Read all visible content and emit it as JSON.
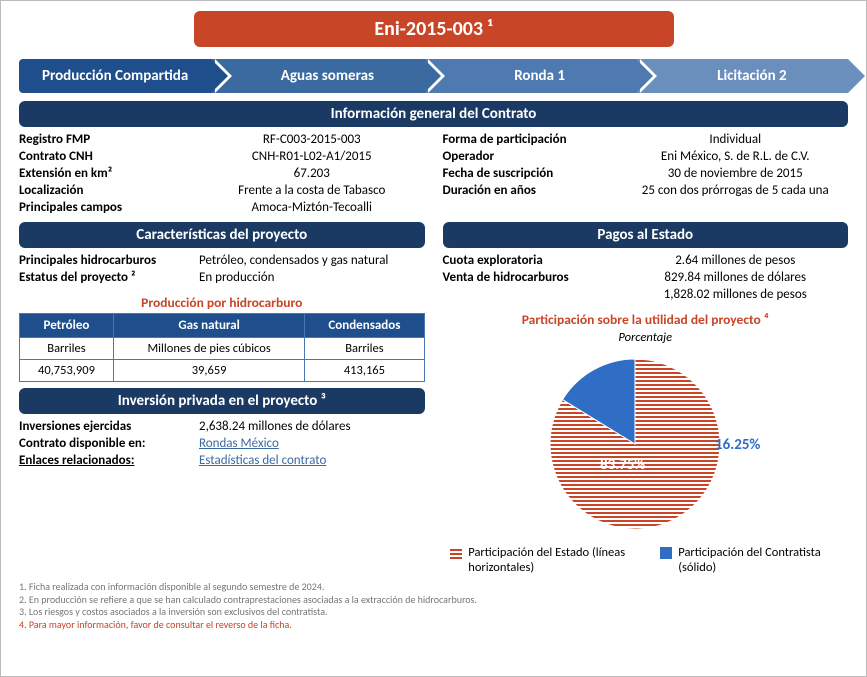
{
  "title": "Eni-2015-003 ¹",
  "chevrons": [
    "Producción Compartida",
    "Aguas someras",
    "Ronda 1",
    "Licitación 2"
  ],
  "section_info": "Información general del Contrato",
  "info_left": [
    {
      "k": "Registro FMP",
      "v": "RF-C003-2015-003"
    },
    {
      "k": "Contrato CNH",
      "v": "CNH-R01-L02-A1/2015"
    },
    {
      "k": "Extensión en km²",
      "v": "67.203"
    },
    {
      "k": "Localización",
      "v": "Frente a la costa de Tabasco"
    },
    {
      "k": "Principales campos",
      "v": "Amoca-Miztón-Tecoalli"
    }
  ],
  "info_right": [
    {
      "k": "Forma de participación",
      "v": "Individual"
    },
    {
      "k": "Operador",
      "v": "Eni México, S. de R.L. de C.V."
    },
    {
      "k": "Fecha de suscripción",
      "v": "30 de noviembre de 2015"
    },
    {
      "k": "Duración en años",
      "v": "25 con dos prórrogas de 5 cada una"
    }
  ],
  "section_caract": "Características  del proyecto",
  "caract": [
    {
      "k": "Principales hidrocarburos",
      "v": "Petróleo, condensados y gas natural"
    },
    {
      "k": "Estatus del proyecto ²",
      "v": "En producción"
    }
  ],
  "section_pagos": "Pagos al Estado",
  "pagos": [
    {
      "k": "Cuota exploratoria",
      "v": "2.64 millones de pesos"
    },
    {
      "k": "Venta de hidrocarburos",
      "v": "829.84 millones de dólares"
    },
    {
      "k": "",
      "v": "1,828.02 millones de pesos"
    }
  ],
  "prod_title": "Producción por hidrocarburo",
  "prod_table": {
    "headers": [
      "Petróleo",
      "Gas natural",
      "Condensados"
    ],
    "units": [
      "Barriles",
      "Millones de pies cúbicos",
      "Barriles"
    ],
    "values": [
      "40,753,909",
      "39,659",
      "413,165"
    ]
  },
  "section_inv": "Inversión privada  en el proyecto ³",
  "inv": {
    "k": "Inversiones ejercidas",
    "v": "2,638.24  millones de dólares"
  },
  "contrato_disp_k": "Contrato disponible en:",
  "contrato_disp_v": "Rondas México",
  "enlaces_k": "Enlaces relacionados:",
  "enlaces_v": "Estadísticas del contrato",
  "pie_title": "Participación sobre la utilidad del proyecto ⁴",
  "pie_sub": "Porcentaje",
  "pie": {
    "type": "pie",
    "slices": [
      {
        "label": "Participación del Estado (líneas horizontales)",
        "pct": 83.75,
        "color": "#c84527",
        "pattern": "hstripe",
        "text": "83.75%"
      },
      {
        "label": "Participación del Contratista (sólido)",
        "pct": 16.25,
        "color": "#2f6ec4",
        "pattern": "solid",
        "text": "16.25%"
      }
    ],
    "label_state": "83.75%",
    "label_contr": "16.25%"
  },
  "legend_state_square_color": "#c84527",
  "legend_contr_square_color": "#2f6ec4",
  "legend_state": "Participación del Estado (líneas horizontales)",
  "legend_contr": "Participación del Contratista (sólido)",
  "footnotes": [
    "1. Ficha realizada con información disponible al segundo semestre de 2024.",
    "2. En producción se refiere a que se han calculado contraprestaciones asociadas a la extracción de hidrocarburos.",
    "3. Los riesgos y costos asociados a la inversión son exclusivos del contratista.",
    "4. Para mayor información, favor de consultar el reverso de la ficha."
  ]
}
